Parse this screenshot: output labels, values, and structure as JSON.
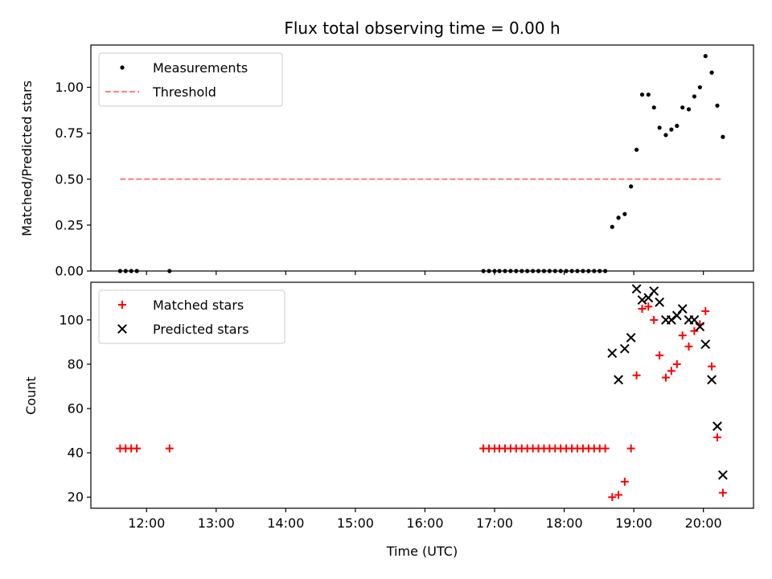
{
  "chart_data": [
    {
      "type": "scatter",
      "panel": "top",
      "title": "Flux total observing time = 0.00 h",
      "xlabel": "",
      "ylabel": "Matched/Predicted stars",
      "ylim": [
        0,
        1.23
      ],
      "xlim": [
        11.2,
        20.72
      ],
      "yticks": [
        0.0,
        0.25,
        0.5,
        0.75,
        1.0
      ],
      "ytick_labels": [
        "0.00",
        "0.25",
        "0.50",
        "0.75",
        "1.00"
      ],
      "grid": false,
      "legend_position": "top-left",
      "legend": [
        "Measurements",
        "Threshold"
      ],
      "series": [
        {
          "name": "Measurements",
          "marker": "dot",
          "color": "#000000",
          "points": [
            [
              11.62,
              0
            ],
            [
              11.7,
              0
            ],
            [
              11.78,
              0
            ],
            [
              11.86,
              0
            ],
            [
              12.33,
              0
            ],
            [
              16.84,
              0
            ],
            [
              16.92,
              0
            ],
            [
              17.0,
              0
            ],
            [
              17.07,
              0
            ],
            [
              17.15,
              0
            ],
            [
              17.23,
              0
            ],
            [
              17.31,
              0
            ],
            [
              17.39,
              0
            ],
            [
              17.47,
              0
            ],
            [
              17.55,
              0
            ],
            [
              17.63,
              0
            ],
            [
              17.71,
              0
            ],
            [
              17.79,
              0
            ],
            [
              17.87,
              0
            ],
            [
              17.95,
              0
            ],
            [
              18.03,
              0
            ],
            [
              18.11,
              0
            ],
            [
              18.19,
              0
            ],
            [
              18.27,
              0
            ],
            [
              18.35,
              0
            ],
            [
              18.43,
              0
            ],
            [
              18.51,
              0
            ],
            [
              18.59,
              0
            ],
            [
              18.69,
              0.24
            ],
            [
              18.78,
              0.29
            ],
            [
              18.87,
              0.31
            ],
            [
              18.96,
              0.46
            ],
            [
              19.04,
              0.66
            ],
            [
              19.12,
              0.96
            ],
            [
              19.21,
              0.96
            ],
            [
              19.29,
              0.89
            ],
            [
              19.37,
              0.78
            ],
            [
              19.46,
              0.74
            ],
            [
              19.54,
              0.77
            ],
            [
              19.62,
              0.79
            ],
            [
              19.7,
              0.89
            ],
            [
              19.79,
              0.88
            ],
            [
              19.87,
              0.95
            ],
            [
              19.95,
              1.0
            ],
            [
              20.03,
              1.17
            ],
            [
              20.12,
              1.08
            ],
            [
              20.2,
              0.9
            ],
            [
              20.28,
              0.73
            ]
          ]
        },
        {
          "name": "Threshold",
          "style": "dashed",
          "color": "#ff7f7f",
          "x": [
            11.62,
            20.28
          ],
          "y": [
            0.5,
            0.5
          ]
        }
      ]
    },
    {
      "type": "scatter",
      "panel": "bottom",
      "title": "",
      "xlabel": "Time (UTC)",
      "ylabel": "Count",
      "ylim": [
        15,
        117
      ],
      "xlim": [
        11.2,
        20.72
      ],
      "yticks": [
        20,
        40,
        60,
        80,
        100
      ],
      "ytick_labels": [
        "20",
        "40",
        "60",
        "80",
        "100"
      ],
      "xticks": [
        12,
        13,
        14,
        15,
        16,
        17,
        18,
        19,
        20
      ],
      "xtick_labels": [
        "12:00",
        "13:00",
        "14:00",
        "15:00",
        "16:00",
        "17:00",
        "18:00",
        "19:00",
        "20:00"
      ],
      "grid": false,
      "legend_position": "top-left",
      "legend": [
        "Matched stars",
        "Predicted stars"
      ],
      "series": [
        {
          "name": "Matched stars",
          "marker": "plus",
          "color": "#ff0000",
          "points": [
            [
              11.62,
              42
            ],
            [
              11.7,
              42
            ],
            [
              11.78,
              42
            ],
            [
              11.86,
              42
            ],
            [
              12.33,
              42
            ],
            [
              16.84,
              42
            ],
            [
              16.92,
              42
            ],
            [
              17.0,
              42
            ],
            [
              17.07,
              42
            ],
            [
              17.15,
              42
            ],
            [
              17.23,
              42
            ],
            [
              17.31,
              42
            ],
            [
              17.39,
              42
            ],
            [
              17.47,
              42
            ],
            [
              17.55,
              42
            ],
            [
              17.63,
              42
            ],
            [
              17.71,
              42
            ],
            [
              17.79,
              42
            ],
            [
              17.87,
              42
            ],
            [
              17.95,
              42
            ],
            [
              18.03,
              42
            ],
            [
              18.11,
              42
            ],
            [
              18.19,
              42
            ],
            [
              18.27,
              42
            ],
            [
              18.35,
              42
            ],
            [
              18.43,
              42
            ],
            [
              18.51,
              42
            ],
            [
              18.59,
              42
            ],
            [
              18.69,
              20
            ],
            [
              18.78,
              21
            ],
            [
              18.87,
              27
            ],
            [
              18.96,
              42
            ],
            [
              19.04,
              75
            ],
            [
              19.12,
              105
            ],
            [
              19.21,
              106
            ],
            [
              19.29,
              100
            ],
            [
              19.37,
              84
            ],
            [
              19.46,
              74
            ],
            [
              19.54,
              77
            ],
            [
              19.62,
              80
            ],
            [
              19.7,
              93
            ],
            [
              19.79,
              88
            ],
            [
              19.87,
              95
            ],
            [
              19.95,
              98
            ],
            [
              20.03,
              104
            ],
            [
              20.12,
              79
            ],
            [
              20.2,
              47
            ],
            [
              20.28,
              22
            ]
          ]
        },
        {
          "name": "Predicted stars",
          "marker": "x",
          "color": "#000000",
          "points": [
            [
              18.69,
              85
            ],
            [
              18.78,
              73
            ],
            [
              18.87,
              87
            ],
            [
              18.96,
              92
            ],
            [
              19.04,
              114
            ],
            [
              19.12,
              109
            ],
            [
              19.21,
              110
            ],
            [
              19.29,
              113
            ],
            [
              19.37,
              108
            ],
            [
              19.46,
              100
            ],
            [
              19.54,
              100
            ],
            [
              19.62,
              102
            ],
            [
              19.7,
              105
            ],
            [
              19.79,
              100
            ],
            [
              19.87,
              100
            ],
            [
              19.95,
              97
            ],
            [
              20.03,
              89
            ],
            [
              20.12,
              73
            ],
            [
              20.2,
              52
            ],
            [
              20.28,
              30
            ]
          ]
        }
      ]
    }
  ]
}
